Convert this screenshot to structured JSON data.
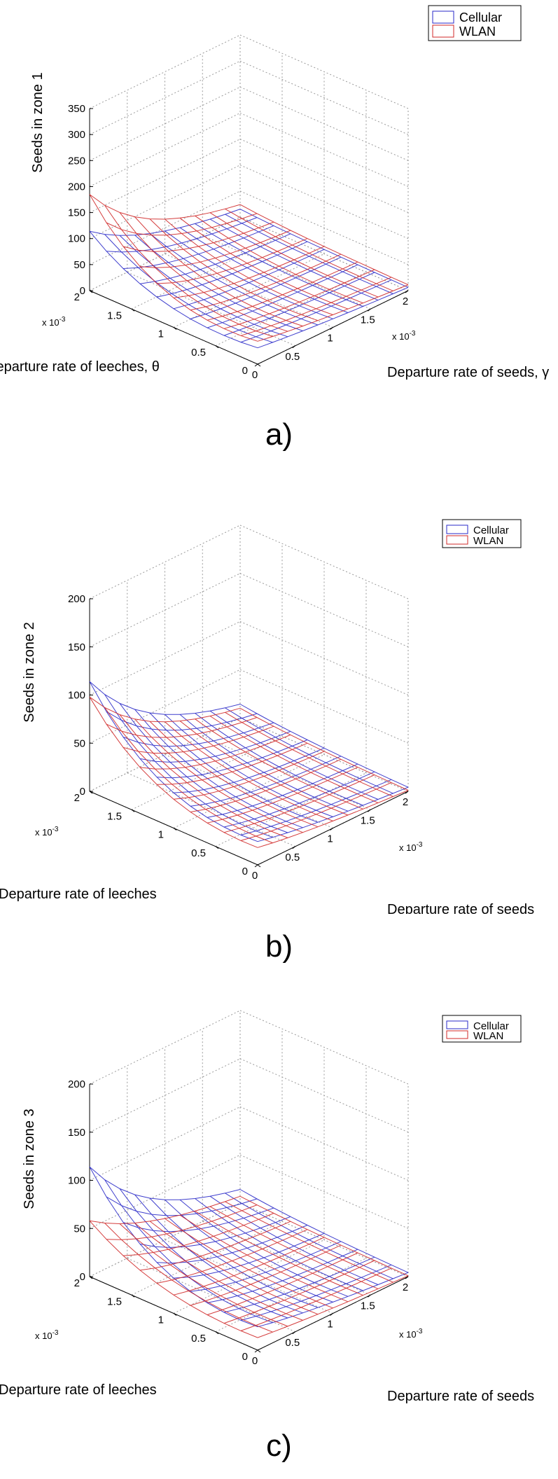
{
  "colors": {
    "cellular": "#2a2ac8",
    "wlan": "#d02828",
    "grid": "#9a9a9a",
    "axis": "#000000"
  },
  "chart_data": [
    {
      "type": "surface3d",
      "caption": "a)",
      "title": "",
      "legend": [
        "Cellular",
        "WLAN"
      ],
      "legend_position": "top-right",
      "xlabel": "Departure rate of seeds, γ",
      "ylabel": "Departure rate of leeches, θ",
      "zlabel": "Seeds in zone 1",
      "x_exponent": "x 10",
      "y_exponent": "x 10",
      "exponent_power": "-3",
      "x_ticks": [
        "0",
        "0.5",
        "1",
        "1.5",
        "2"
      ],
      "y_ticks": [
        "0",
        "0.5",
        "1",
        "1.5",
        "2"
      ],
      "z_ticks": [
        "0",
        "50",
        "100",
        "150",
        "200",
        "250",
        "300",
        "350"
      ],
      "xlim": [
        0,
        0.002
      ],
      "ylim": [
        0,
        0.002
      ],
      "zlim": [
        0,
        350
      ],
      "grid": true,
      "series": [
        {
          "name": "Cellular",
          "color": "cellular",
          "z_max": 98,
          "z_min": 5,
          "edge_bump": 16,
          "decay": 2.2
        },
        {
          "name": "WLAN",
          "color": "wlan",
          "z_max": 165,
          "z_min": 10,
          "edge_bump": 20,
          "decay": 2.4
        }
      ]
    },
    {
      "type": "surface3d",
      "caption": "b)",
      "title": "",
      "legend": [
        "Cellular",
        "WLAN"
      ],
      "legend_position": "top-right",
      "xlabel": "Departure rate of seeds",
      "ylabel": "Departure rate of leeches",
      "zlabel": "Seeds in zone 2",
      "x_exponent": "x 10",
      "y_exponent": "x 10",
      "exponent_power": "-3",
      "x_ticks": [
        "0",
        "0.5",
        "1",
        "1.5",
        "2"
      ],
      "y_ticks": [
        "0",
        "0.5",
        "1",
        "1.5",
        "2"
      ],
      "z_ticks": [
        "0",
        "50",
        "100",
        "150",
        "200"
      ],
      "xlim": [
        0,
        0.002
      ],
      "ylim": [
        0,
        0.002
      ],
      "zlim": [
        0,
        200
      ],
      "grid": true,
      "series": [
        {
          "name": "Cellular",
          "color": "cellular",
          "z_max": 104,
          "z_min": 3,
          "edge_bump": 10,
          "decay": 2.2
        },
        {
          "name": "WLAN",
          "color": "wlan",
          "z_max": 90,
          "z_min": 0,
          "edge_bump": 8,
          "decay": 2.2
        }
      ]
    },
    {
      "type": "surface3d",
      "caption": "c)",
      "title": "",
      "legend": [
        "Cellular",
        "WLAN"
      ],
      "legend_position": "top-right",
      "xlabel": "Departure rate of seeds",
      "ylabel": "Departure rate of leeches",
      "zlabel": "Seeds in zone 3",
      "x_exponent": "x 10",
      "y_exponent": "x 10",
      "exponent_power": "-3",
      "x_ticks": [
        "0",
        "0.5",
        "1",
        "1.5",
        "2"
      ],
      "y_ticks": [
        "0",
        "0.5",
        "1",
        "1.5",
        "2"
      ],
      "z_ticks": [
        "0",
        "50",
        "100",
        "150",
        "200"
      ],
      "xlim": [
        0,
        0.002
      ],
      "ylim": [
        0,
        0.002
      ],
      "zlim": [
        0,
        200
      ],
      "grid": true,
      "series": [
        {
          "name": "Cellular",
          "color": "cellular",
          "z_max": 104,
          "z_min": 3,
          "edge_bump": 10,
          "decay": 2.2
        },
        {
          "name": "WLAN",
          "color": "wlan",
          "z_max": 52,
          "z_min": 0,
          "edge_bump": 6,
          "decay": 2.0
        }
      ]
    }
  ]
}
